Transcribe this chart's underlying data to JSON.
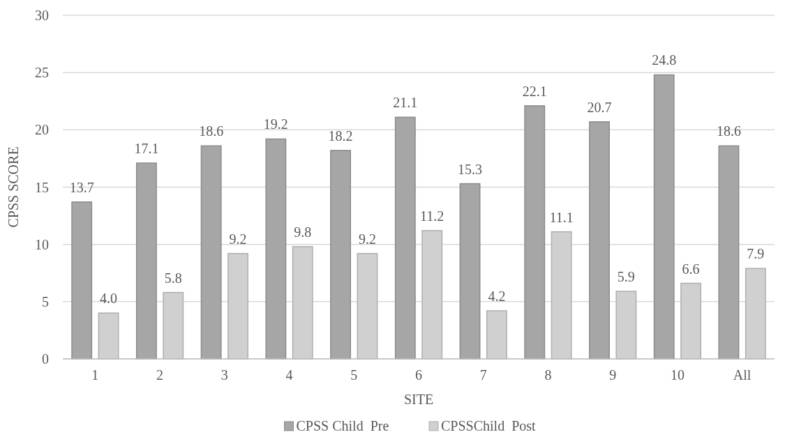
{
  "chart_data": {
    "type": "bar",
    "xlabel": "SITE",
    "ylabel": "CPSS SCORE",
    "categories": [
      "1",
      "2",
      "3",
      "4",
      "5",
      "6",
      "7",
      "8",
      "9",
      "10",
      "All"
    ],
    "series": [
      {
        "name": "CPSS Child  Pre",
        "color": "#a6a6a6",
        "values": [
          13.7,
          17.1,
          18.6,
          19.2,
          18.2,
          21.1,
          15.3,
          22.1,
          20.7,
          24.8,
          18.6
        ],
        "value_labels": [
          "13.7",
          "17.1",
          "18.6",
          "19.2",
          "18.2",
          "21.1",
          "15.3",
          "22.1",
          "20.7",
          "24.8",
          "18.6"
        ]
      },
      {
        "name": "CPSSChild  Post",
        "color": "#d0d0d0",
        "values": [
          4.0,
          5.8,
          9.2,
          9.8,
          9.2,
          11.2,
          4.2,
          11.1,
          5.9,
          6.6,
          7.9
        ],
        "value_labels": [
          "4.0",
          "5.8",
          "9.2",
          "9.8",
          "9.2",
          "11.2",
          "4.2",
          "11.1",
          "5.9",
          "6.6",
          "7.9"
        ]
      }
    ],
    "ylim": [
      0,
      30
    ],
    "yticks": [
      0,
      5,
      10,
      15,
      20,
      25,
      30
    ],
    "grid": "y",
    "legend": "bottom"
  }
}
